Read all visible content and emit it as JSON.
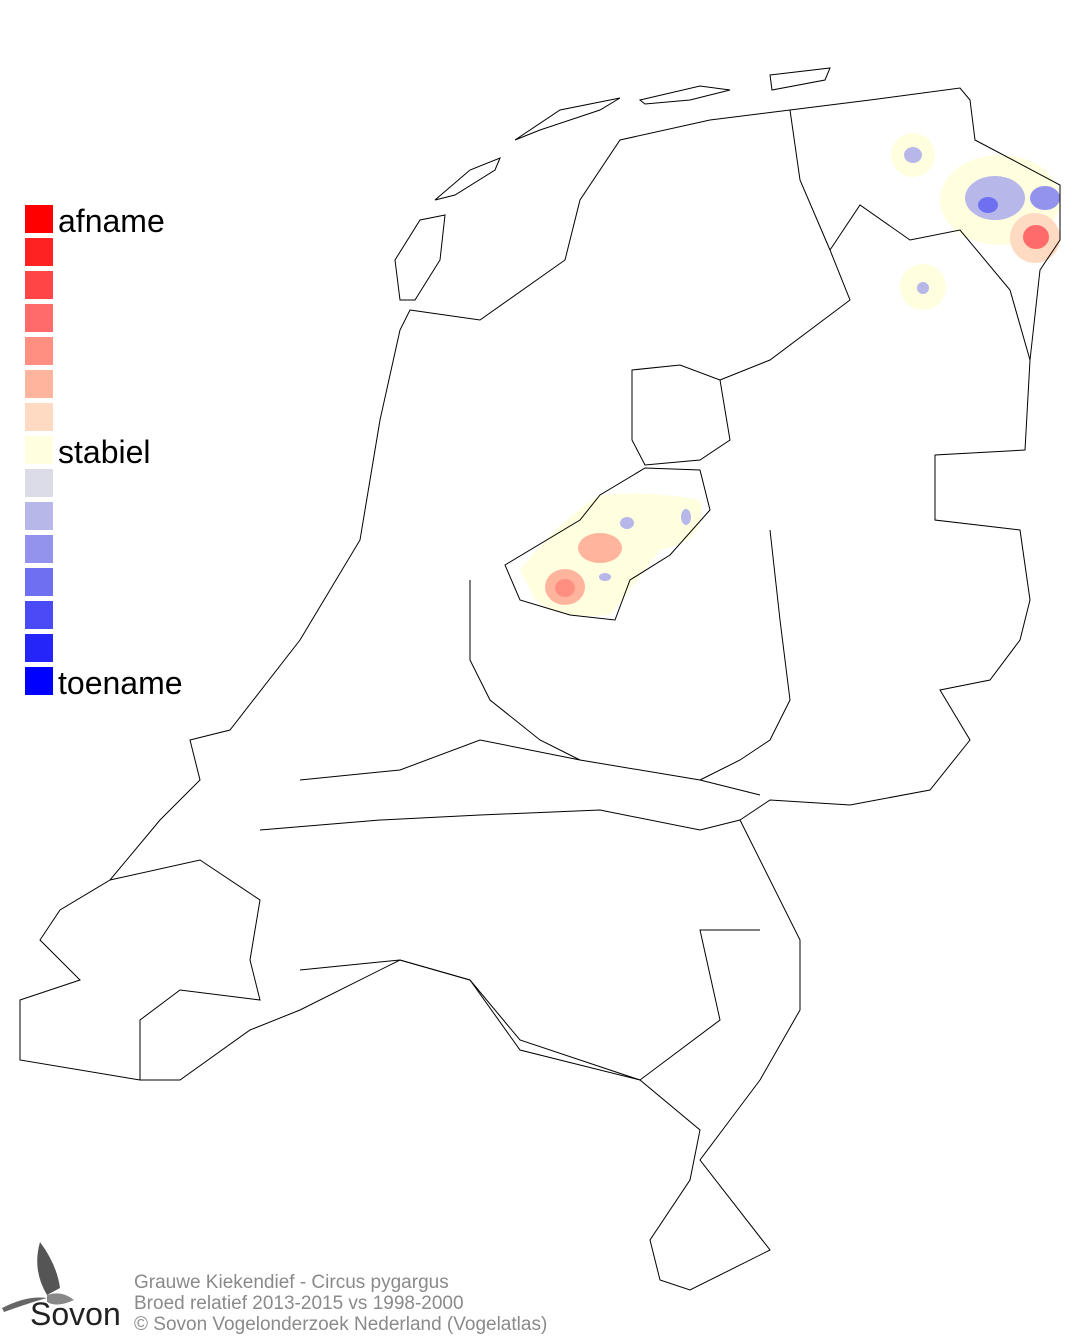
{
  "legend": {
    "labels": {
      "top": "afname",
      "middle": "stabiel",
      "bottom": "toename"
    },
    "colors": [
      "#ff0000",
      "#ff2222",
      "#ff4545",
      "#ff6a6a",
      "#ff8f80",
      "#ffb49e",
      "#ffdac2",
      "#ffffe0",
      "#dcdce8",
      "#b7b7ea",
      "#9393ee",
      "#6f6ff2",
      "#4a4af6",
      "#2525fa",
      "#0000ff"
    ]
  },
  "map": {
    "region": "Nederland",
    "outline_color": "#000000"
  },
  "footer": {
    "line1": "Grauwe Kiekendief - Circus pygargus",
    "line2": "Broed relatief 2013-2015 vs 1998-2000",
    "line3": "© Sovon Vogelonderzoek Nederland (Vogelatlas)"
  },
  "logo": {
    "text": "Sovon",
    "icon": "swallow-icon"
  }
}
